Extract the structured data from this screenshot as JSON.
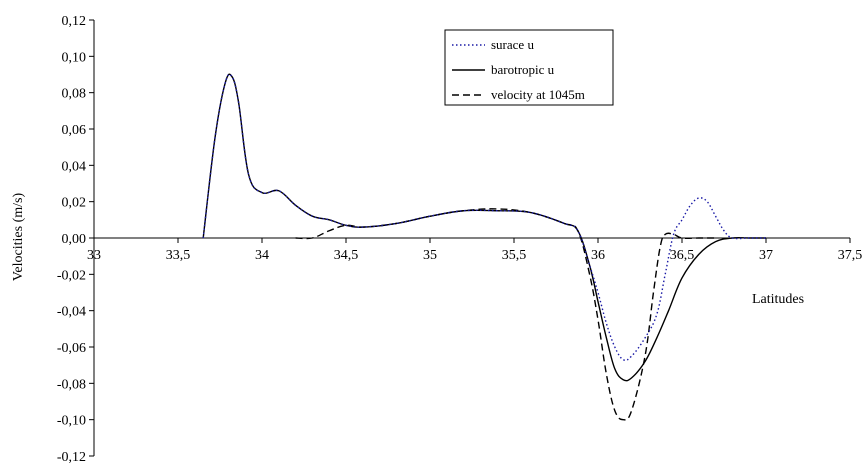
{
  "chart_data": {
    "type": "line",
    "title": "",
    "xlabel": "Latitudes",
    "ylabel": "Velocities (m/s)",
    "xlim": [
      33,
      37.5
    ],
    "ylim": [
      -0.12,
      0.12
    ],
    "grid": false,
    "legend_position": "top-center",
    "x_ticks": [
      {
        "value": 33,
        "label": "33"
      },
      {
        "value": 33.5,
        "label": "33,5"
      },
      {
        "value": 34,
        "label": "34"
      },
      {
        "value": 34.5,
        "label": "34,5"
      },
      {
        "value": 35,
        "label": "35"
      },
      {
        "value": 35.5,
        "label": "35,5"
      },
      {
        "value": 36,
        "label": "36"
      },
      {
        "value": 36.5,
        "label": "36,5"
      },
      {
        "value": 37,
        "label": "37"
      },
      {
        "value": 37.5,
        "label": "37,5"
      }
    ],
    "y_ticks": [
      {
        "value": 0.12,
        "label": "0,12"
      },
      {
        "value": 0.1,
        "label": "0,10"
      },
      {
        "value": 0.08,
        "label": "0,08"
      },
      {
        "value": 0.06,
        "label": "0,06"
      },
      {
        "value": 0.04,
        "label": "0,04"
      },
      {
        "value": 0.02,
        "label": "0,02"
      },
      {
        "value": 0.0,
        "label": "0,00"
      },
      {
        "value": -0.02,
        "label": "-0,02"
      },
      {
        "value": -0.04,
        "label": "-0,04"
      },
      {
        "value": -0.06,
        "label": "-0,06"
      },
      {
        "value": -0.08,
        "label": "-0,08"
      },
      {
        "value": -0.1,
        "label": "-0,10"
      },
      {
        "value": -0.12,
        "label": "-0,12"
      }
    ],
    "series": [
      {
        "name": "surace u",
        "color": "#1a1aa6",
        "dash": "dotted",
        "x": [
          33.65,
          33.72,
          33.78,
          33.82,
          33.86,
          33.92,
          34.0,
          34.1,
          34.2,
          34.3,
          34.4,
          34.5,
          34.6,
          34.8,
          35.0,
          35.2,
          35.4,
          35.6,
          35.8,
          35.88,
          35.95,
          36.0,
          36.05,
          36.1,
          36.15,
          36.2,
          36.28,
          36.35,
          36.4,
          36.45,
          36.5,
          36.55,
          36.6,
          36.65,
          36.7,
          36.75,
          36.8,
          36.9,
          37.0
        ],
        "y": [
          0.0,
          0.055,
          0.085,
          0.089,
          0.075,
          0.035,
          0.025,
          0.026,
          0.018,
          0.012,
          0.01,
          0.007,
          0.006,
          0.008,
          0.012,
          0.015,
          0.015,
          0.014,
          0.008,
          0.004,
          -0.015,
          -0.03,
          -0.047,
          -0.06,
          -0.067,
          -0.065,
          -0.055,
          -0.042,
          -0.02,
          0.002,
          0.01,
          0.018,
          0.022,
          0.02,
          0.012,
          0.004,
          0.0,
          0.0,
          0.0
        ]
      },
      {
        "name": "barotropic u",
        "color": "#000000",
        "dash": "solid",
        "x": [
          33.65,
          33.72,
          33.78,
          33.82,
          33.86,
          33.92,
          34.0,
          34.1,
          34.2,
          34.3,
          34.4,
          34.5,
          34.6,
          34.8,
          35.0,
          35.2,
          35.4,
          35.6,
          35.8,
          35.88,
          35.95,
          36.0,
          36.05,
          36.1,
          36.15,
          36.2,
          36.28,
          36.35,
          36.42,
          36.5,
          36.6,
          36.7,
          36.8,
          36.9,
          37.0
        ],
        "y": [
          0.0,
          0.055,
          0.085,
          0.089,
          0.075,
          0.035,
          0.025,
          0.026,
          0.018,
          0.012,
          0.01,
          0.007,
          0.006,
          0.008,
          0.012,
          0.015,
          0.015,
          0.014,
          0.008,
          0.004,
          -0.015,
          -0.035,
          -0.055,
          -0.072,
          -0.078,
          -0.077,
          -0.068,
          -0.055,
          -0.04,
          -0.022,
          -0.009,
          -0.002,
          0.0,
          0.0,
          0.0
        ]
      },
      {
        "name": "velocity at 1045m",
        "color": "#000000",
        "dash": "dashed",
        "x": [
          34.2,
          34.3,
          34.4,
          34.5,
          34.6,
          34.8,
          35.0,
          35.2,
          35.4,
          35.6,
          35.8,
          35.88,
          35.95,
          36.0,
          36.05,
          36.1,
          36.15,
          36.2,
          36.28,
          36.33,
          36.37,
          36.4,
          36.45,
          36.5,
          36.6,
          36.7
        ],
        "y": [
          0.0,
          0.0,
          0.004,
          0.007,
          0.006,
          0.008,
          0.012,
          0.015,
          0.016,
          0.014,
          0.008,
          0.004,
          -0.02,
          -0.045,
          -0.075,
          -0.095,
          -0.1,
          -0.095,
          -0.065,
          -0.03,
          -0.005,
          0.002,
          0.002,
          0.0,
          0.0,
          0.0
        ]
      }
    ]
  }
}
